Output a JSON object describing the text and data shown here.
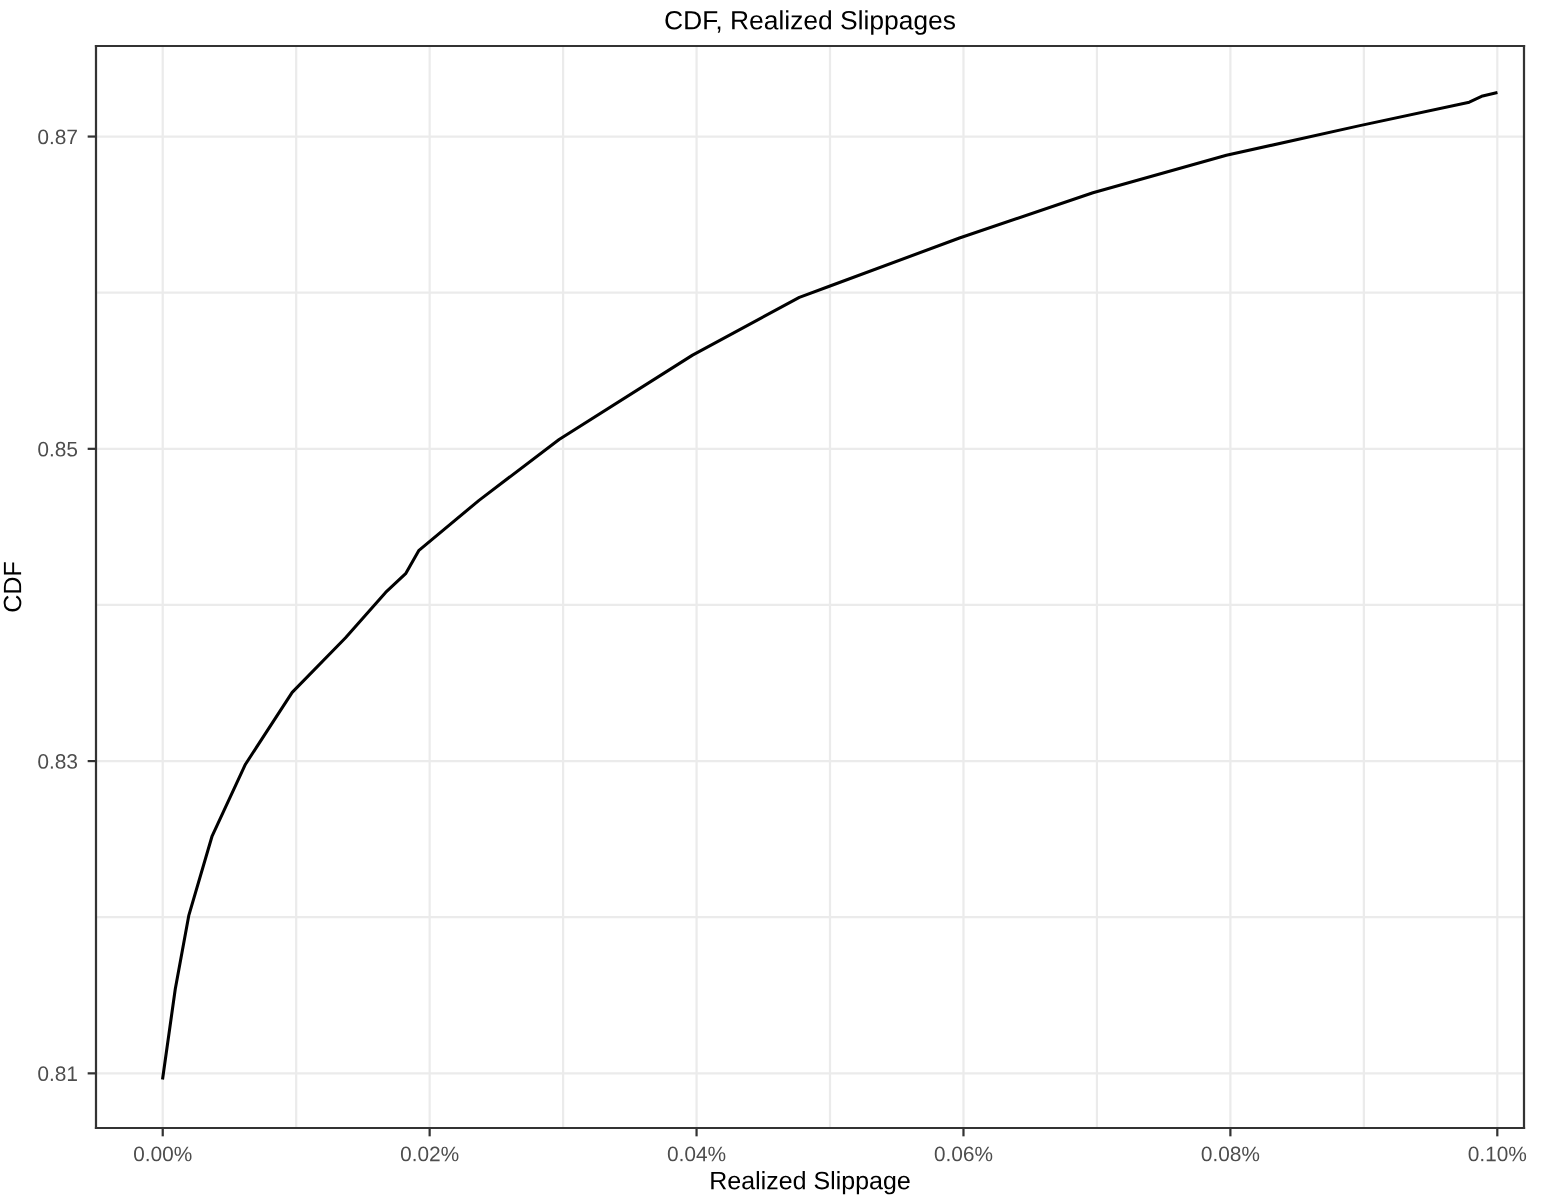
{
  "chart_data": {
    "type": "line",
    "title": "CDF, Realized Slippages",
    "xlabel": "Realized Slippage",
    "ylabel": "CDF",
    "x": [
      0.0,
      0.00094,
      0.00195,
      0.0037,
      0.0062,
      0.0097,
      0.0137,
      0.0167,
      0.0182,
      0.0192,
      0.0237,
      0.0297,
      0.0397,
      0.0477,
      0.0499,
      0.0597,
      0.0697,
      0.0797,
      0.0897,
      0.0979,
      0.0989,
      0.0999
    ],
    "series": [
      {
        "color": "#000000",
        "values": [
          0.8097,
          0.8154,
          0.8201,
          0.8252,
          0.8298,
          0.8344,
          0.8379,
          0.8408,
          0.842,
          0.8435,
          0.8467,
          0.8506,
          0.856,
          0.8597,
          0.8604,
          0.8635,
          0.8664,
          0.8688,
          0.8707,
          0.8722,
          0.8726,
          0.8728
        ]
      }
    ],
    "xlim": [
      -0.005,
      0.102
    ],
    "ylim": [
      0.8065,
      0.8758
    ],
    "xticks": [
      {
        "value": 0.0,
        "label": "0.00%"
      },
      {
        "value": 0.02,
        "label": "0.02%"
      },
      {
        "value": 0.04,
        "label": "0.04%"
      },
      {
        "value": 0.06,
        "label": "0.06%"
      },
      {
        "value": 0.08,
        "label": "0.08%"
      },
      {
        "value": 0.1,
        "label": "0.10%"
      }
    ],
    "yticks": [
      0.81,
      0.83,
      0.85,
      0.87
    ],
    "grid": true,
    "marker": "none",
    "line_style": "solid",
    "legend": false
  }
}
